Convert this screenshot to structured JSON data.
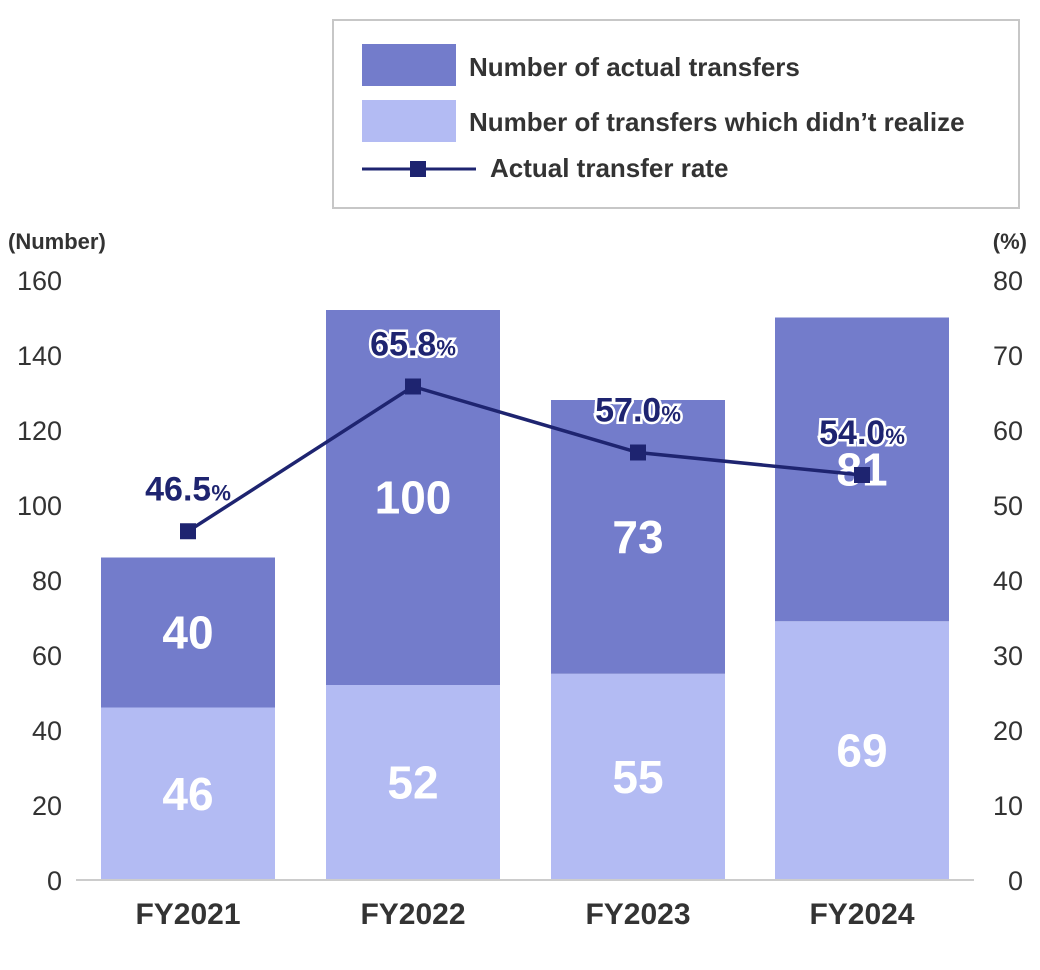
{
  "chart_data": {
    "type": "bar",
    "stacked": true,
    "categories": [
      "FY2021",
      "FY2022",
      "FY2023",
      "FY2024"
    ],
    "y_label": "(Number)",
    "y2_label": "(%)",
    "ylim": [
      0,
      160
    ],
    "y2lim": [
      0,
      80
    ],
    "y_ticks": [
      0,
      20,
      40,
      60,
      80,
      100,
      120,
      140,
      160
    ],
    "y2_ticks": [
      0,
      10,
      20,
      30,
      40,
      50,
      60,
      70,
      80
    ],
    "series": [
      {
        "name": "Number of transfers which didn’t realize",
        "type": "bar",
        "color": "#b3bbf3",
        "values": [
          46,
          52,
          55,
          69
        ]
      },
      {
        "name": "Number of actual transfers",
        "type": "bar",
        "color": "#737ccb",
        "values": [
          40,
          100,
          73,
          81
        ]
      },
      {
        "name": "Actual transfer rate",
        "type": "line",
        "axis": "right",
        "color": "#1e2470",
        "values": [
          46.5,
          65.8,
          57.0,
          54.0
        ],
        "labels": [
          "46.5",
          "65.8",
          "57.0",
          "54.0"
        ],
        "label_unit": "%"
      }
    ],
    "legend": {
      "placement": "top-right",
      "items": [
        {
          "label": "Number of actual transfers",
          "color": "#737ccb",
          "kind": "swatch"
        },
        {
          "label": "Number of transfers which didn’t realize",
          "color": "#b3bbf3",
          "kind": "swatch"
        },
        {
          "label": "Actual transfer rate",
          "color": "#1e2470",
          "kind": "line-marker"
        }
      ]
    },
    "grid": false
  }
}
